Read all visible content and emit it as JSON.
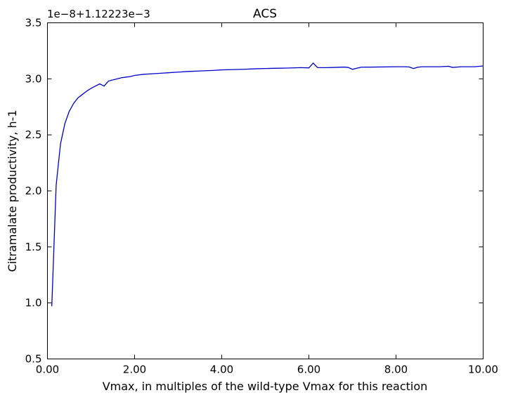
{
  "chart_data": {
    "type": "line",
    "title": "ACS",
    "xlabel": "Vmax, in multiples of the wild-type Vmax for this reaction",
    "ylabel": "Citramalate productivity, h-1",
    "y_offset_text": "1e−8+1.12223e−3",
    "xlim": [
      0,
      10
    ],
    "ylim": [
      0.5,
      3.5
    ],
    "x_ticks": [
      0,
      2,
      4,
      6,
      8,
      10
    ],
    "x_tick_labels": [
      "0.00",
      "2.00",
      "4.00",
      "6.00",
      "8.00",
      "10.00"
    ],
    "y_ticks": [
      0.5,
      1.0,
      1.5,
      2.0,
      2.5,
      3.0,
      3.5
    ],
    "y_tick_labels": [
      "0.5",
      "1.0",
      "1.5",
      "2.0",
      "2.5",
      "3.0",
      "3.5"
    ],
    "grid": false,
    "line_color": "#0000cc",
    "series": [
      {
        "x": [
          0.1,
          0.2,
          0.3,
          0.4,
          0.5,
          0.6,
          0.7,
          0.8,
          0.9,
          1.0,
          1.1,
          1.2,
          1.3,
          1.4,
          1.5,
          1.6,
          1.7,
          1.8,
          1.9,
          2.0,
          2.2,
          2.4,
          2.6,
          2.8,
          3.0,
          3.2,
          3.5,
          3.8,
          4.0,
          4.2,
          4.5,
          4.8,
          5.0,
          5.2,
          5.5,
          5.8,
          6.0,
          6.1,
          6.2,
          6.4,
          6.6,
          6.8,
          6.9,
          7.0,
          7.2,
          7.5,
          8.0,
          8.2,
          8.3,
          8.4,
          8.5,
          8.6,
          8.8,
          9.0,
          9.2,
          9.3,
          9.5,
          9.8,
          10.0
        ],
        "values": [
          0.97,
          2.05,
          2.42,
          2.6,
          2.71,
          2.78,
          2.83,
          2.86,
          2.89,
          2.915,
          2.935,
          2.955,
          2.935,
          2.98,
          2.99,
          3.0,
          3.01,
          3.015,
          3.02,
          3.03,
          3.04,
          3.045,
          3.05,
          3.055,
          3.06,
          3.065,
          3.07,
          3.075,
          3.08,
          3.082,
          3.085,
          3.09,
          3.092,
          3.094,
          3.096,
          3.1,
          3.098,
          3.14,
          3.1,
          3.1,
          3.102,
          3.105,
          3.102,
          3.085,
          3.104,
          3.105,
          3.108,
          3.108,
          3.106,
          3.092,
          3.104,
          3.108,
          3.108,
          3.108,
          3.112,
          3.102,
          3.108,
          3.108,
          3.115
        ]
      }
    ]
  }
}
